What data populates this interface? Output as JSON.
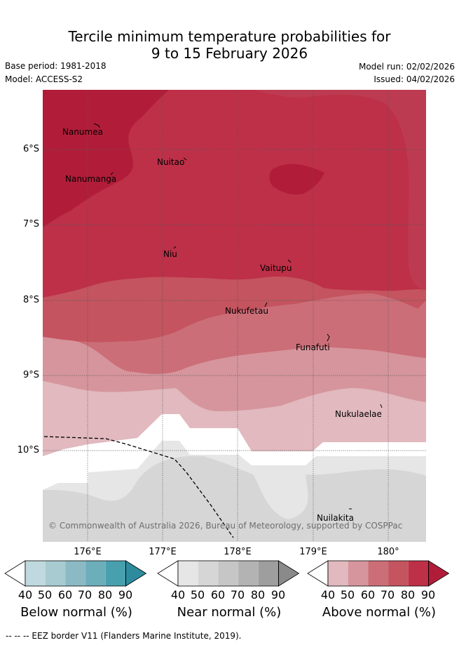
{
  "header": {
    "title_line1": "Tercile minimum temperature probabilities for",
    "title_line2": "9 to 15 February 2026",
    "base_period": "Base period: 1981-2018",
    "model": "Model: ACCESS-S2",
    "model_run": "Model run: 02/02/2026",
    "issued": "Issued: 04/02/2026"
  },
  "axes": {
    "lat_labels": [
      "6°S",
      "7°S",
      "8°S",
      "9°S",
      "10°S"
    ],
    "lon_labels": [
      "176°E",
      "177°E",
      "178°E",
      "179°E",
      "180°"
    ]
  },
  "places": [
    {
      "name": "Nanumea"
    },
    {
      "name": "Nuitao"
    },
    {
      "name": "Nanumanga"
    },
    {
      "name": "Niu"
    },
    {
      "name": "Vaitupu"
    },
    {
      "name": "Nukufetau"
    },
    {
      "name": "Funafuti"
    },
    {
      "name": "Nukulaelae"
    },
    {
      "name": "Nuilakita"
    }
  ],
  "credit": "© Commonwealth of Australia 2026, Bureau of Meteorology, supported by COSPPac",
  "legend": {
    "ticks": [
      "40",
      "50",
      "60",
      "70",
      "80",
      "90"
    ],
    "below": {
      "title": "Below normal (%)",
      "colors": [
        "#ffffff",
        "#c0d9de",
        "#a7cbd0",
        "#8cbac4",
        "#6daebb",
        "#48a0af",
        "#2e8b9e"
      ]
    },
    "near": {
      "title": "Near normal (%)",
      "colors": [
        "#ffffff",
        "#e6e6e6",
        "#d6d6d6",
        "#c6c6c6",
        "#b3b3b3",
        "#9e9e9e",
        "#8a8a8a"
      ]
    },
    "above": {
      "title": "Above normal (%)",
      "colors": [
        "#ffffff",
        "#e1b9bf",
        "#d6959c",
        "#cb6e78",
        "#c4545f",
        "#bd3048",
        "#b11d39"
      ]
    }
  },
  "footer": "--  --  -- EEZ border V11 (Flanders Marine Institute, 2019)."
}
